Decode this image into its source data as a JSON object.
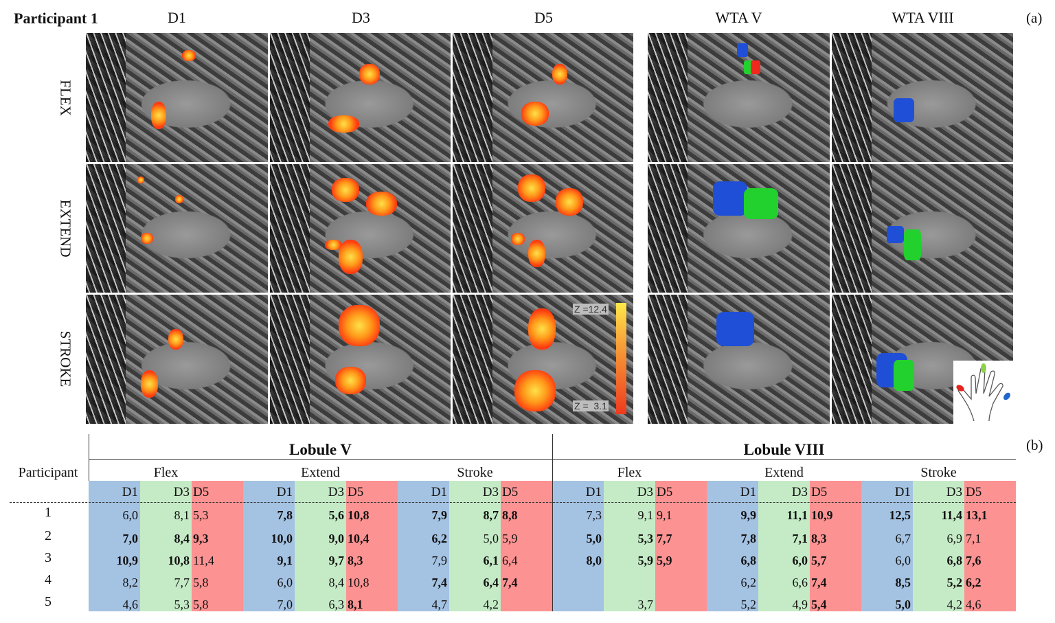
{
  "figure": {
    "participant_title": "Participant 1",
    "panel_a_label": "(a)",
    "panel_b_label": "(b)",
    "columns": [
      "D1",
      "D3",
      "D5",
      "WTA V",
      "WTA VIII"
    ],
    "rows": [
      "FLEX",
      "EXTEND",
      "STROKE"
    ],
    "colorbar": {
      "max_label": "Z =12.4",
      "min_label": "Z =  3.1",
      "colors": [
        "#fde84a",
        "#ee3a1e"
      ]
    },
    "wta_colors": {
      "D1": "#1f4fd6",
      "D3": "#22d12e",
      "D5": "#f0281e"
    },
    "hand_icon": "hand-icon"
  },
  "table": {
    "participant_header": "Participant",
    "lobules": [
      "Lobule V",
      "Lobule VIII"
    ],
    "tasks": [
      "Flex",
      "Extend",
      "Stroke"
    ],
    "digits": [
      "D1",
      "D3",
      "D5"
    ],
    "digit_colors": {
      "D1": "#a4c2e2",
      "D3": "#c5ebc6",
      "D5": "#fd9292"
    },
    "rows": [
      {
        "participant": "1",
        "values": [
          {
            "v": "6,0",
            "b": false
          },
          {
            "v": "8,1",
            "b": false
          },
          {
            "v": "5,3",
            "b": false
          },
          {
            "v": "7,8",
            "b": true
          },
          {
            "v": "5,6",
            "b": true
          },
          {
            "v": "10,8",
            "b": true
          },
          {
            "v": "7,9",
            "b": true
          },
          {
            "v": "8,7",
            "b": true
          },
          {
            "v": "8,8",
            "b": true
          },
          {
            "v": "7,3",
            "b": false
          },
          {
            "v": "9,1",
            "b": false
          },
          {
            "v": "9,1",
            "b": false
          },
          {
            "v": "9,9",
            "b": true
          },
          {
            "v": "11,1",
            "b": true
          },
          {
            "v": "10,9",
            "b": true
          },
          {
            "v": "12,5",
            "b": true
          },
          {
            "v": "11,4",
            "b": true
          },
          {
            "v": "13,1",
            "b": true
          }
        ]
      },
      {
        "participant": "2",
        "values": [
          {
            "v": "7,0",
            "b": true
          },
          {
            "v": "8,4",
            "b": true
          },
          {
            "v": "9,3",
            "b": true
          },
          {
            "v": "10,0",
            "b": true
          },
          {
            "v": "9,0",
            "b": true
          },
          {
            "v": "10,4",
            "b": true
          },
          {
            "v": "6,2",
            "b": true
          },
          {
            "v": "5,0",
            "b": false
          },
          {
            "v": "5,9",
            "b": false
          },
          {
            "v": "5,0",
            "b": true
          },
          {
            "v": "5,3",
            "b": true
          },
          {
            "v": "7,7",
            "b": true
          },
          {
            "v": "7,8",
            "b": true
          },
          {
            "v": "7,1",
            "b": true
          },
          {
            "v": "8,3",
            "b": true
          },
          {
            "v": "6,7",
            "b": false
          },
          {
            "v": "6,9",
            "b": false
          },
          {
            "v": "7,1",
            "b": false
          }
        ]
      },
      {
        "participant": "3",
        "values": [
          {
            "v": "10,9",
            "b": true
          },
          {
            "v": "10,8",
            "b": true
          },
          {
            "v": "11,4",
            "b": false
          },
          {
            "v": "9,1",
            "b": true
          },
          {
            "v": "9,7",
            "b": true
          },
          {
            "v": "8,3",
            "b": true
          },
          {
            "v": "7,9",
            "b": false
          },
          {
            "v": "6,1",
            "b": true
          },
          {
            "v": "6,4",
            "b": false
          },
          {
            "v": "8,0",
            "b": true
          },
          {
            "v": "5,9",
            "b": true
          },
          {
            "v": "5,9",
            "b": true
          },
          {
            "v": "6,8",
            "b": true
          },
          {
            "v": "6,0",
            "b": true
          },
          {
            "v": "5,7",
            "b": true
          },
          {
            "v": "6,0",
            "b": false
          },
          {
            "v": "6,8",
            "b": true
          },
          {
            "v": "7,6",
            "b": true
          }
        ]
      },
      {
        "participant": "4",
        "values": [
          {
            "v": "8,2",
            "b": false
          },
          {
            "v": "7,7",
            "b": false
          },
          {
            "v": "5,8",
            "b": false
          },
          {
            "v": "6,0",
            "b": false
          },
          {
            "v": "8,4",
            "b": false
          },
          {
            "v": "10,8",
            "b": false
          },
          {
            "v": "7,4",
            "b": true
          },
          {
            "v": "6,4",
            "b": true
          },
          {
            "v": "7,4",
            "b": true
          },
          {
            "v": "",
            "b": false
          },
          {
            "v": "",
            "b": false
          },
          {
            "v": "",
            "b": false
          },
          {
            "v": "6,2",
            "b": false
          },
          {
            "v": "6,6",
            "b": false
          },
          {
            "v": "7,4",
            "b": true
          },
          {
            "v": "8,5",
            "b": true
          },
          {
            "v": "5,2",
            "b": true
          },
          {
            "v": "6,2",
            "b": true
          }
        ]
      },
      {
        "participant": "5",
        "values": [
          {
            "v": "4,6",
            "b": false
          },
          {
            "v": "5,3",
            "b": false
          },
          {
            "v": "5,8",
            "b": false
          },
          {
            "v": "7,0",
            "b": false
          },
          {
            "v": "6,3",
            "b": false
          },
          {
            "v": "8,1",
            "b": true
          },
          {
            "v": "4,7",
            "b": false
          },
          {
            "v": "4,2",
            "b": false
          },
          {
            "v": "",
            "b": false
          },
          {
            "v": "",
            "b": false
          },
          {
            "v": "3,7",
            "b": false
          },
          {
            "v": "",
            "b": false
          },
          {
            "v": "5,2",
            "b": false
          },
          {
            "v": "4,9",
            "b": false
          },
          {
            "v": "5,4",
            "b": true
          },
          {
            "v": "5,0",
            "b": true
          },
          {
            "v": "4,2",
            "b": false
          },
          {
            "v": "4,6",
            "b": false
          }
        ]
      }
    ]
  }
}
